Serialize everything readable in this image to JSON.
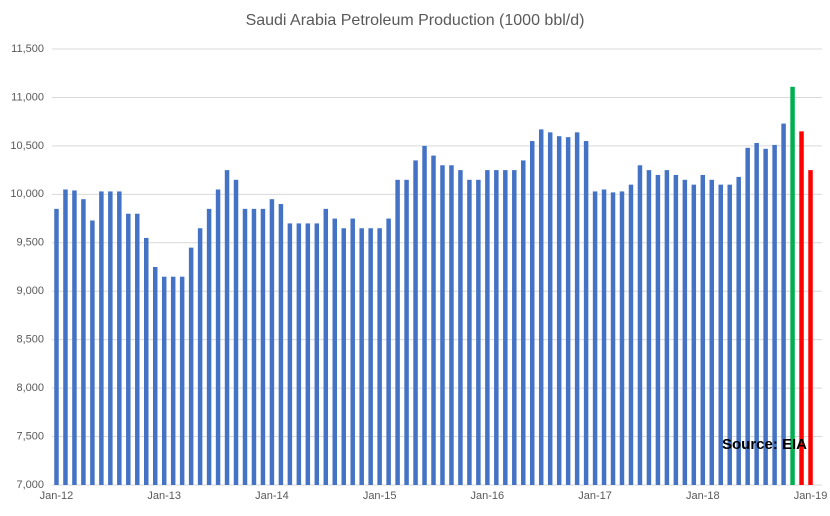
{
  "chart_data": {
    "type": "bar",
    "title": "Saudi Arabia Petroleum Production (1000 bbl/d)",
    "annotation": "Source: EIA",
    "categories": [
      "Jan-12",
      null,
      null,
      null,
      null,
      null,
      null,
      null,
      null,
      null,
      null,
      null,
      "Jan-13",
      null,
      null,
      null,
      null,
      null,
      null,
      null,
      null,
      null,
      null,
      null,
      "Jan-14",
      null,
      null,
      null,
      null,
      null,
      null,
      null,
      null,
      null,
      null,
      null,
      "Jan-15",
      null,
      null,
      null,
      null,
      null,
      null,
      null,
      null,
      null,
      null,
      null,
      "Jan-16",
      null,
      null,
      null,
      null,
      null,
      null,
      null,
      null,
      null,
      null,
      null,
      "Jan-17",
      null,
      null,
      null,
      null,
      null,
      null,
      null,
      null,
      null,
      null,
      null,
      "Jan-18",
      null,
      null,
      null,
      null,
      null,
      null,
      null,
      null,
      null,
      null,
      null,
      "Jan-19"
    ],
    "values": [
      9850,
      10050,
      10040,
      9950,
      9730,
      10030,
      10030,
      10030,
      9800,
      9800,
      9550,
      9250,
      9150,
      9150,
      9150,
      9450,
      9650,
      9850,
      10050,
      10250,
      10150,
      9850,
      9850,
      9850,
      9950,
      9900,
      9700,
      9700,
      9700,
      9700,
      9850,
      9750,
      9650,
      9750,
      9650,
      9650,
      9650,
      9750,
      10150,
      10150,
      10350,
      10500,
      10400,
      10300,
      10300,
      10250,
      10150,
      10150,
      10250,
      10250,
      10250,
      10250,
      10350,
      10550,
      10670,
      10640,
      10600,
      10590,
      10640,
      10550,
      10030,
      10050,
      10020,
      10030,
      10100,
      10300,
      10250,
      10200,
      10250,
      10200,
      10150,
      10100,
      10200,
      10150,
      10100,
      10100,
      10180,
      10480,
      10530,
      10470,
      10510,
      10730,
      11110,
      10650,
      10250
    ],
    "colors": [
      "#4472c4",
      "#4472c4",
      "#4472c4",
      "#4472c4",
      "#4472c4",
      "#4472c4",
      "#4472c4",
      "#4472c4",
      "#4472c4",
      "#4472c4",
      "#4472c4",
      "#4472c4",
      "#4472c4",
      "#4472c4",
      "#4472c4",
      "#4472c4",
      "#4472c4",
      "#4472c4",
      "#4472c4",
      "#4472c4",
      "#4472c4",
      "#4472c4",
      "#4472c4",
      "#4472c4",
      "#4472c4",
      "#4472c4",
      "#4472c4",
      "#4472c4",
      "#4472c4",
      "#4472c4",
      "#4472c4",
      "#4472c4",
      "#4472c4",
      "#4472c4",
      "#4472c4",
      "#4472c4",
      "#4472c4",
      "#4472c4",
      "#4472c4",
      "#4472c4",
      "#4472c4",
      "#4472c4",
      "#4472c4",
      "#4472c4",
      "#4472c4",
      "#4472c4",
      "#4472c4",
      "#4472c4",
      "#4472c4",
      "#4472c4",
      "#4472c4",
      "#4472c4",
      "#4472c4",
      "#4472c4",
      "#4472c4",
      "#4472c4",
      "#4472c4",
      "#4472c4",
      "#4472c4",
      "#4472c4",
      "#4472c4",
      "#4472c4",
      "#4472c4",
      "#4472c4",
      "#4472c4",
      "#4472c4",
      "#4472c4",
      "#4472c4",
      "#4472c4",
      "#4472c4",
      "#4472c4",
      "#4472c4",
      "#4472c4",
      "#4472c4",
      "#4472c4",
      "#4472c4",
      "#4472c4",
      "#4472c4",
      "#4472c4",
      "#4472c4",
      "#4472c4",
      "#4472c4",
      "#00b050",
      "#ff0000",
      "#ff0000"
    ],
    "ylim": [
      7000,
      11500
    ],
    "yticks": [
      {
        "value": 7000,
        "label": "7,000"
      },
      {
        "value": 7500,
        "label": "7,500"
      },
      {
        "value": 8000,
        "label": "8,000"
      },
      {
        "value": 8500,
        "label": "8,500"
      },
      {
        "value": 9000,
        "label": "9,000"
      },
      {
        "value": 9500,
        "label": "9,500"
      },
      {
        "value": 10000,
        "label": "10,000"
      },
      {
        "value": 10500,
        "label": "10,500"
      },
      {
        "value": 11000,
        "label": "11,000"
      },
      {
        "value": 11500,
        "label": "11,500"
      }
    ],
    "grid": true
  }
}
